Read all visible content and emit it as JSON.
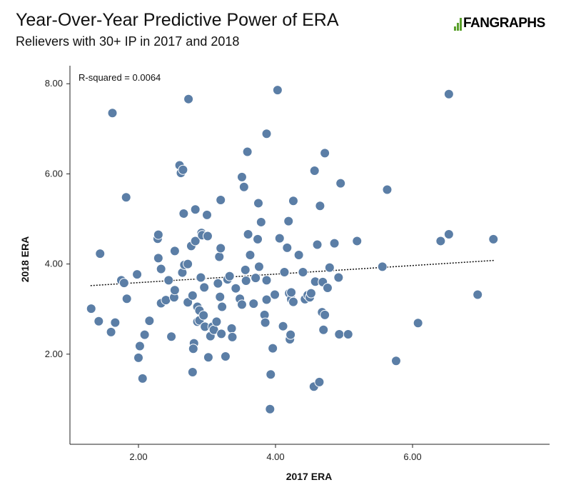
{
  "header": {
    "title": "Year-Over-Year Predictive Power of ERA",
    "subtitle": "Relievers with 30+ IP in 2017 and 2018",
    "logo_text": "FANGRAPHS"
  },
  "colors": {
    "point_fill": "#5b7ea6",
    "point_stroke": "#ffffff",
    "trendline": "#111111",
    "axis": "#222222",
    "logo": "#5aa02c"
  },
  "chart_data": {
    "type": "scatter",
    "title": "Year-Over-Year Predictive Power of ERA",
    "subtitle": "Relievers with 30+ IP in 2017 and 2018",
    "xlabel": "2017 ERA",
    "ylabel": "2018 ERA",
    "xlim": [
      1.0,
      8.0
    ],
    "ylim": [
      0.0,
      8.4
    ],
    "xticks": [
      2,
      4,
      6
    ],
    "yticks": [
      2,
      4,
      6,
      8
    ],
    "xtick_labels": [
      "2.00",
      "4.00",
      "6.00"
    ],
    "ytick_labels": [
      "2.00",
      "4.00",
      "6.00",
      "8.00"
    ],
    "grid": false,
    "annotation": "R-squared = 0.0064",
    "trendline": {
      "style": "dotted",
      "x": [
        1.3,
        7.2
      ],
      "y": [
        3.52,
        4.08
      ]
    },
    "points": [
      [
        1.62,
        7.35
      ],
      [
        1.82,
        5.48
      ],
      [
        1.44,
        4.23
      ],
      [
        1.31,
        3.01
      ],
      [
        1.42,
        2.73
      ],
      [
        1.6,
        2.49
      ],
      [
        1.66,
        2.7
      ],
      [
        1.75,
        3.64
      ],
      [
        1.79,
        3.58
      ],
      [
        1.83,
        3.23
      ],
      [
        1.98,
        3.77
      ],
      [
        2.0,
        1.92
      ],
      [
        2.02,
        2.18
      ],
      [
        2.06,
        1.46
      ],
      [
        2.09,
        2.43
      ],
      [
        2.16,
        2.74
      ],
      [
        2.28,
        4.56
      ],
      [
        2.29,
        4.65
      ],
      [
        2.29,
        4.13
      ],
      [
        2.33,
        3.89
      ],
      [
        2.33,
        3.13
      ],
      [
        2.4,
        3.2
      ],
      [
        2.44,
        3.64
      ],
      [
        2.48,
        2.39
      ],
      [
        2.52,
        3.26
      ],
      [
        2.53,
        3.42
      ],
      [
        2.53,
        4.29
      ],
      [
        2.6,
        6.19
      ],
      [
        2.62,
        6.02
      ],
      [
        2.65,
        6.09
      ],
      [
        2.64,
        3.81
      ],
      [
        2.66,
        5.12
      ],
      [
        2.67,
        3.98
      ],
      [
        2.72,
        4.0
      ],
      [
        2.72,
        3.15
      ],
      [
        2.73,
        7.66
      ],
      [
        2.77,
        4.4
      ],
      [
        2.79,
        3.3
      ],
      [
        2.81,
        2.24
      ],
      [
        2.8,
        2.12
      ],
      [
        2.79,
        1.6
      ],
      [
        2.83,
        5.21
      ],
      [
        2.83,
        4.51
      ],
      [
        2.86,
        3.05
      ],
      [
        2.86,
        2.72
      ],
      [
        2.89,
        2.97
      ],
      [
        2.89,
        2.75
      ],
      [
        2.91,
        3.7
      ],
      [
        2.92,
        4.69
      ],
      [
        2.93,
        4.64
      ],
      [
        2.95,
        2.86
      ],
      [
        2.96,
        3.48
      ],
      [
        2.97,
        2.61
      ],
      [
        3.0,
        5.09
      ],
      [
        3.01,
        4.62
      ],
      [
        3.02,
        1.93
      ],
      [
        3.05,
        2.4
      ],
      [
        3.08,
        2.61
      ],
      [
        3.1,
        2.54
      ],
      [
        3.14,
        2.72
      ],
      [
        3.16,
        3.57
      ],
      [
        3.18,
        4.16
      ],
      [
        3.19,
        3.27
      ],
      [
        3.2,
        4.35
      ],
      [
        3.2,
        5.42
      ],
      [
        3.22,
        3.05
      ],
      [
        3.21,
        2.45
      ],
      [
        3.27,
        1.95
      ],
      [
        3.3,
        3.66
      ],
      [
        3.33,
        3.73
      ],
      [
        3.36,
        2.57
      ],
      [
        3.37,
        2.38
      ],
      [
        3.42,
        3.46
      ],
      [
        3.48,
        3.23
      ],
      [
        3.51,
        3.1
      ],
      [
        3.51,
        5.93
      ],
      [
        3.54,
        5.71
      ],
      [
        3.56,
        3.87
      ],
      [
        3.57,
        3.63
      ],
      [
        3.59,
        6.49
      ],
      [
        3.6,
        4.66
      ],
      [
        3.63,
        4.2
      ],
      [
        3.68,
        3.12
      ],
      [
        3.71,
        3.69
      ],
      [
        3.74,
        4.55
      ],
      [
        3.75,
        5.35
      ],
      [
        3.76,
        3.94
      ],
      [
        3.79,
        4.93
      ],
      [
        3.84,
        2.87
      ],
      [
        3.85,
        2.7
      ],
      [
        3.87,
        3.64
      ],
      [
        3.87,
        3.21
      ],
      [
        3.87,
        6.89
      ],
      [
        3.92,
        0.78
      ],
      [
        3.93,
        1.55
      ],
      [
        3.96,
        2.13
      ],
      [
        3.99,
        3.32
      ],
      [
        4.03,
        7.86
      ],
      [
        4.06,
        4.57
      ],
      [
        4.11,
        2.62
      ],
      [
        4.13,
        3.82
      ],
      [
        4.17,
        4.36
      ],
      [
        4.19,
        4.95
      ],
      [
        4.2,
        3.35
      ],
      [
        4.21,
        2.33
      ],
      [
        4.22,
        2.43
      ],
      [
        4.23,
        3.22
      ],
      [
        4.23,
        3.37
      ],
      [
        4.26,
        5.4
      ],
      [
        4.26,
        3.16
      ],
      [
        4.34,
        4.2
      ],
      [
        4.4,
        3.82
      ],
      [
        4.43,
        3.22
      ],
      [
        4.47,
        3.31
      ],
      [
        4.5,
        3.26
      ],
      [
        4.52,
        3.35
      ],
      [
        4.56,
        1.28
      ],
      [
        4.57,
        6.07
      ],
      [
        4.58,
        3.61
      ],
      [
        4.61,
        4.43
      ],
      [
        4.64,
        1.38
      ],
      [
        4.65,
        5.29
      ],
      [
        4.68,
        2.93
      ],
      [
        4.69,
        3.6
      ],
      [
        4.7,
        2.54
      ],
      [
        4.72,
        2.87
      ],
      [
        4.72,
        6.46
      ],
      [
        4.76,
        3.47
      ],
      [
        4.79,
        3.92
      ],
      [
        4.86,
        4.46
      ],
      [
        4.92,
        3.7
      ],
      [
        4.93,
        2.44
      ],
      [
        4.95,
        5.79
      ],
      [
        5.06,
        2.44
      ],
      [
        5.19,
        4.51
      ],
      [
        5.56,
        3.94
      ],
      [
        5.63,
        5.65
      ],
      [
        5.76,
        1.85
      ],
      [
        6.08,
        2.69
      ],
      [
        6.41,
        4.51
      ],
      [
        6.53,
        4.66
      ],
      [
        6.53,
        7.77
      ],
      [
        6.95,
        3.32
      ],
      [
        7.18,
        4.55
      ]
    ]
  }
}
